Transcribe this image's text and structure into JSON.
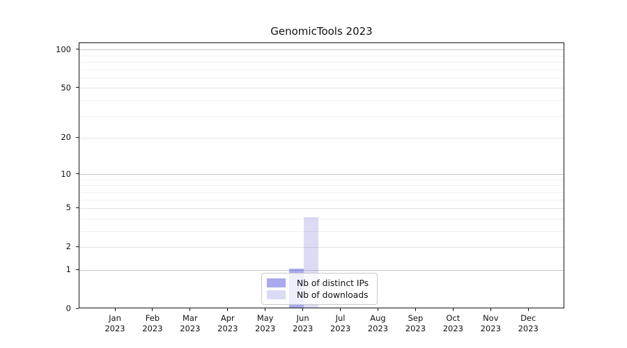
{
  "chart_data": {
    "type": "bar",
    "title": "GenomicTools 2023",
    "categories": [
      "Jan 2023",
      "Feb 2023",
      "Mar 2023",
      "Apr 2023",
      "May 2023",
      "Jun 2023",
      "Jul 2023",
      "Aug 2023",
      "Sep 2023",
      "Oct 2023",
      "Nov 2023",
      "Dec 2023"
    ],
    "series": [
      {
        "name": "Nb of distinct IPs",
        "color": "#6363e4",
        "alpha": 0.55,
        "color_over_white": "#aaaaee",
        "values": [
          0,
          0,
          0,
          0,
          0,
          1,
          0,
          0,
          0,
          0,
          0,
          0
        ]
      },
      {
        "name": "Nb of downloads",
        "color": "#6f6fdb",
        "alpha": 0.25,
        "color_over_white": "#dbdbf6",
        "values": [
          0,
          0,
          0,
          0,
          0,
          4,
          0,
          0,
          0,
          0,
          0,
          0
        ]
      }
    ],
    "y_scale": "log1p",
    "y_major_ticks": [
      0,
      1,
      2,
      5,
      10,
      20,
      50,
      100
    ],
    "y_decade_ticks": [
      1,
      10,
      100
    ],
    "y_minor_ticks": [
      3,
      4,
      6,
      7,
      8,
      9,
      30,
      40,
      60,
      70,
      80,
      90
    ],
    "ylim": [
      0,
      113
    ],
    "grid": true,
    "legend_position": "lower center"
  }
}
